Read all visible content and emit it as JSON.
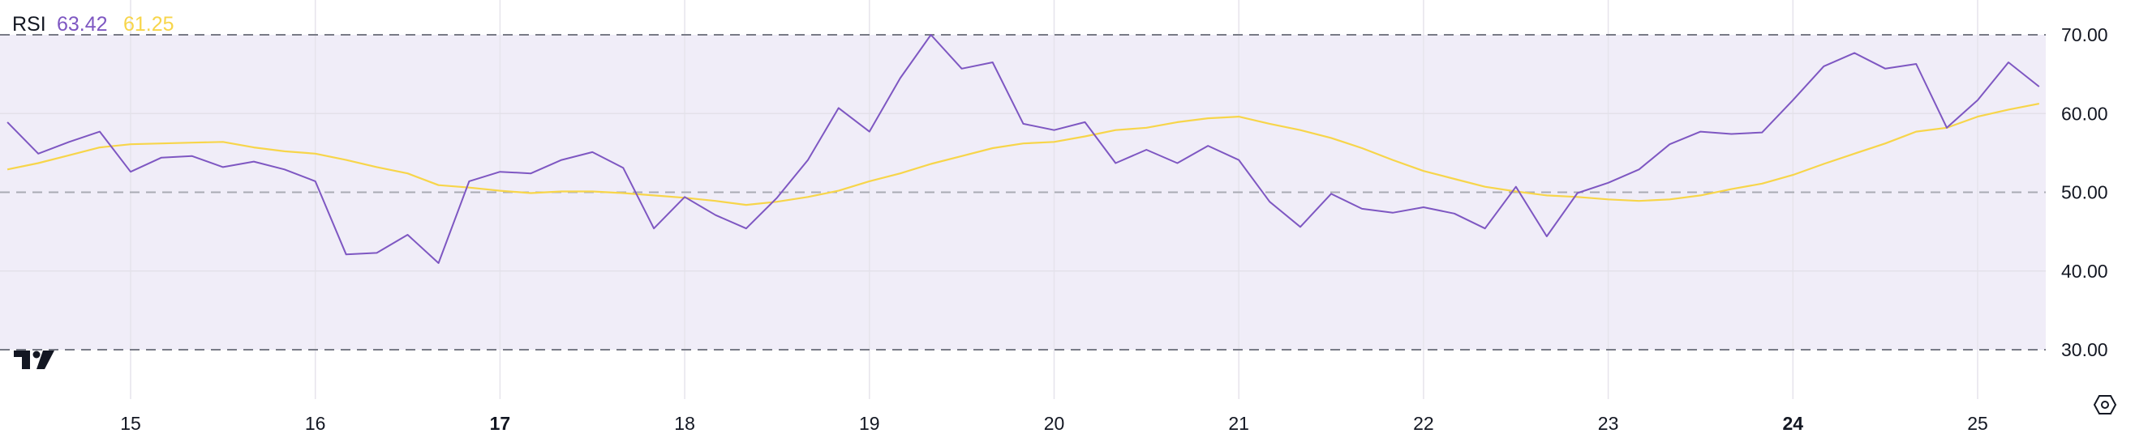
{
  "legend": {
    "indicator": "RSI",
    "rsi_value": "63.42",
    "ma_value": "61.25"
  },
  "colors": {
    "rsi": "#7e57c2",
    "ma": "#f7d54a",
    "band": "#f0edf8",
    "text": "#131722"
  },
  "icons": {
    "logo": "tradingview-logo",
    "settings": "hexagon-settings-icon"
  },
  "chart_data": {
    "type": "line",
    "title": "RSI",
    "ylim": [
      30,
      70
    ],
    "xlim": [
      14.333,
      25.333
    ],
    "grid": true,
    "band": [
      30,
      70
    ],
    "y_ticks": [
      "70.00",
      "60.00",
      "50.00",
      "40.00",
      "30.00"
    ],
    "y_tick_values": [
      70,
      60,
      50,
      40,
      30
    ],
    "x_ticks": [
      {
        "value": 15,
        "label": "15",
        "bold": false
      },
      {
        "value": 16,
        "label": "16",
        "bold": false
      },
      {
        "value": 17,
        "label": "17",
        "bold": true
      },
      {
        "value": 18,
        "label": "18",
        "bold": false
      },
      {
        "value": 19,
        "label": "19",
        "bold": false
      },
      {
        "value": 20,
        "label": "20",
        "bold": false
      },
      {
        "value": 21,
        "label": "21",
        "bold": false
      },
      {
        "value": 22,
        "label": "22",
        "bold": false
      },
      {
        "value": 23,
        "label": "23",
        "bold": false
      },
      {
        "value": 24,
        "label": "24",
        "bold": true
      },
      {
        "value": 25,
        "label": "25",
        "bold": false
      }
    ],
    "x": [
      14.333,
      14.5,
      14.667,
      14.833,
      15,
      15.167,
      15.333,
      15.5,
      15.667,
      15.833,
      16,
      16.167,
      16.333,
      16.5,
      16.667,
      16.833,
      17,
      17.167,
      17.333,
      17.5,
      17.667,
      17.833,
      18,
      18.167,
      18.333,
      18.5,
      18.667,
      18.833,
      19,
      19.167,
      19.333,
      19.5,
      19.667,
      19.833,
      20,
      20.167,
      20.333,
      20.5,
      20.667,
      20.833,
      21,
      21.167,
      21.333,
      21.5,
      21.667,
      21.833,
      22,
      22.167,
      22.333,
      22.5,
      22.667,
      22.833,
      23,
      23.167,
      23.333,
      23.5,
      23.667,
      23.833,
      24,
      24.167,
      24.333,
      24.5,
      24.667,
      24.833,
      25,
      25.167,
      25.333
    ],
    "series": [
      {
        "name": "RSI",
        "color": "#7e57c2",
        "values": [
          58.9,
          54.9,
          56.4,
          57.7,
          52.6,
          54.4,
          54.6,
          53.2,
          53.9,
          52.9,
          51.4,
          42.1,
          42.3,
          44.6,
          41.0,
          51.4,
          52.6,
          52.4,
          54.1,
          55.1,
          53.1,
          45.4,
          49.4,
          47.1,
          45.4,
          49.3,
          54.1,
          60.7,
          57.7,
          64.5,
          70.0,
          65.7,
          66.5,
          58.7,
          57.9,
          58.9,
          53.7,
          55.4,
          53.7,
          55.9,
          54.1,
          48.8,
          45.6,
          49.8,
          47.9,
          47.4,
          48.1,
          47.3,
          45.4,
          50.7,
          44.4,
          49.9,
          51.2,
          52.9,
          56.1,
          57.7,
          57.4,
          57.6,
          61.7,
          66.0,
          67.7,
          65.7,
          66.3,
          58.2,
          61.7,
          66.5,
          63.42
        ]
      },
      {
        "color": "#f7d54a",
        "values": [
          52.9,
          53.7,
          54.7,
          55.7,
          56.1,
          56.2,
          56.3,
          56.4,
          55.7,
          55.2,
          54.9,
          54.1,
          53.2,
          52.4,
          50.9,
          50.6,
          50.2,
          49.9,
          50.1,
          50.1,
          49.9,
          49.6,
          49.3,
          48.9,
          48.4,
          48.8,
          49.4,
          50.2,
          51.4,
          52.4,
          53.6,
          54.6,
          55.6,
          56.2,
          56.4,
          57.1,
          57.9,
          58.2,
          58.9,
          59.4,
          59.6,
          58.7,
          57.9,
          56.9,
          55.6,
          54.1,
          52.7,
          51.7,
          50.7,
          50.1,
          49.6,
          49.4,
          49.1,
          48.9,
          49.1,
          49.6,
          50.4,
          51.1,
          52.2,
          53.6,
          54.9,
          56.2,
          57.7,
          58.2,
          59.6,
          60.5,
          61.25
        ]
      }
    ]
  }
}
